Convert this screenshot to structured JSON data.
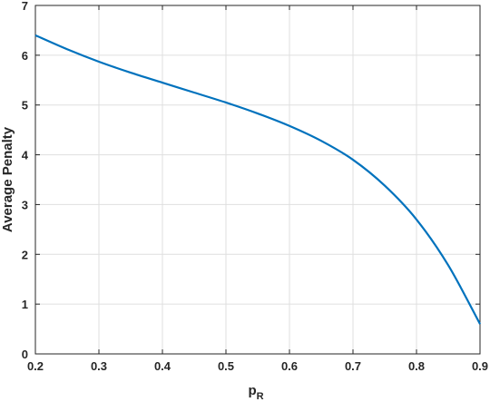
{
  "chart_data": {
    "type": "line",
    "title": "",
    "xlabel": "p",
    "xlabel_subscript": "R",
    "ylabel": "Average Penalty",
    "xlim": [
      0.2,
      0.9
    ],
    "ylim": [
      0,
      7
    ],
    "xticks": [
      "0.2",
      "0.3",
      "0.4",
      "0.5",
      "0.6",
      "0.7",
      "0.8",
      "0.9"
    ],
    "yticks": [
      "0",
      "1",
      "2",
      "3",
      "4",
      "5",
      "6",
      "7"
    ],
    "grid": true,
    "legend": "none",
    "series": [
      {
        "color": "#0072BD",
        "x": [
          0.2,
          0.25,
          0.3,
          0.35,
          0.4,
          0.45,
          0.5,
          0.55,
          0.6,
          0.65,
          0.7,
          0.75,
          0.8,
          0.85,
          0.9
        ],
        "y": [
          6.4,
          6.12,
          5.87,
          5.65,
          5.45,
          5.25,
          5.05,
          4.83,
          4.58,
          4.28,
          3.9,
          3.38,
          2.7,
          1.78,
          0.6
        ]
      }
    ]
  }
}
